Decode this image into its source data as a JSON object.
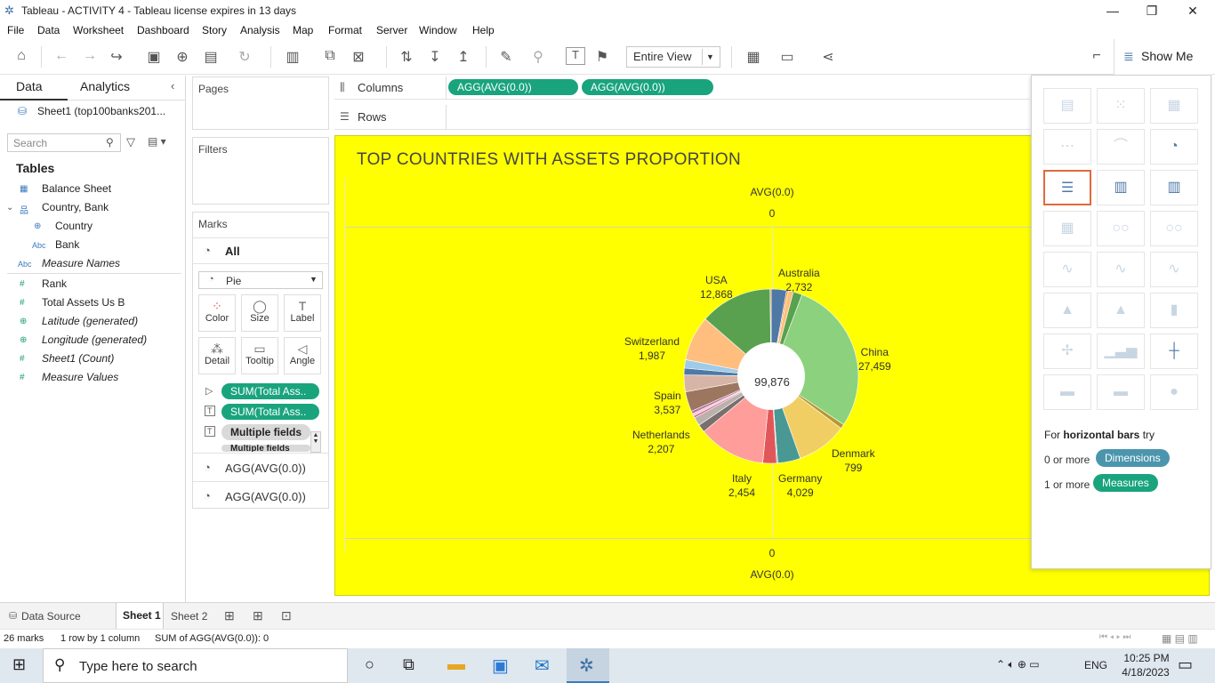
{
  "window": {
    "title": "Tableau - ACTIVITY 4 - Tableau license expires in 13 days"
  },
  "menu": [
    "File",
    "Data",
    "Worksheet",
    "Dashboard",
    "Story",
    "Analysis",
    "Map",
    "Format",
    "Server",
    "Window",
    "Help"
  ],
  "toolbar": {
    "fit_value": "Entire View",
    "show_me_label": "Show Me"
  },
  "datapane": {
    "tab_data": "Data",
    "tab_analytics": "Analytics",
    "datasource": "Sheet1 (top100banks201...",
    "search_placeholder": "Search",
    "tables_heading": "Tables",
    "fields": [
      {
        "name": "Balance Sheet",
        "icon": "table-icon"
      },
      {
        "name": "Country, Bank",
        "icon": "hierarchy-icon"
      },
      {
        "name": "Country",
        "icon": "globe-icon"
      },
      {
        "name": "Bank",
        "icon": "abc-icon"
      },
      {
        "name": "Measure Names",
        "icon": "abc-icon"
      },
      {
        "name": "Rank",
        "icon": "hash-icon"
      },
      {
        "name": "Total Assets Us B",
        "icon": "hash-icon"
      },
      {
        "name": "Latitude (generated)",
        "icon": "globe-icon"
      },
      {
        "name": "Longitude (generated)",
        "icon": "globe-icon"
      },
      {
        "name": "Sheet1 (Count)",
        "icon": "hash-icon"
      },
      {
        "name": "Measure Values",
        "icon": "hash-icon"
      }
    ],
    "abc_glyph": "Abc"
  },
  "shelves": {
    "pages": "Pages",
    "filters": "Filters",
    "columns_label": "Columns",
    "rows_label": "Rows",
    "column_pills": [
      "AGG(AVG(0.0))",
      "AGG(AVG(0.0))"
    ]
  },
  "marks": {
    "title": "Marks",
    "all": "All",
    "mark_type": "Pie",
    "buttons": [
      "Color",
      "Size",
      "Label",
      "Detail",
      "Tooltip",
      "Angle"
    ],
    "pills": [
      "SUM(Total Ass..",
      "SUM(Total Ass..",
      "Multiple fields",
      "Multiple fields"
    ],
    "sub_cards": [
      "AGG(AVG(0.0))",
      "AGG(AVG(0.0))"
    ]
  },
  "viz": {
    "title": "TOP COUNTRIES WITH ASSETS PROPORTION",
    "axis_top_label": "AVG(0.0)",
    "axis_top_tick": "0",
    "axis_bottom_tick": "0",
    "axis_bottom_label": "AVG(0.0)",
    "center_total": "99,876",
    "background": "#ffff00"
  },
  "chart_data": {
    "type": "pie",
    "title": "TOP COUNTRIES WITH ASSETS PROPORTION",
    "total": 99876,
    "labeled_slices": [
      {
        "label": "USA",
        "value": 12868
      },
      {
        "label": "Australia",
        "value": 2732
      },
      {
        "label": "China",
        "value": 27459
      },
      {
        "label": "Denmark",
        "value": 799
      },
      {
        "label": "Germany",
        "value": 4029
      },
      {
        "label": "Italy",
        "value": 2454
      },
      {
        "label": "Netherlands",
        "value": 2207
      },
      {
        "label": "Spain",
        "value": 3537
      },
      {
        "label": "Switzerland",
        "value": 1987
      }
    ],
    "label_values_text": [
      "12,868",
      "2,732",
      "27,459",
      "799",
      "4,029",
      "2,454",
      "2,207",
      "3,537",
      "1,987"
    ],
    "slice_colors": [
      "#4e79a7",
      "#f28e2b",
      "#ffbe7d",
      "#59a14f",
      "#8cd17d",
      "#b6992d",
      "#f1ce63",
      "#499894",
      "#86bcb6",
      "#e15759",
      "#ff9d9a",
      "#79706e",
      "#bab0ac",
      "#d37295",
      "#fabfd2",
      "#b07aa1",
      "#d4a6c8",
      "#9d7660",
      "#d7b5a6",
      "#4e79a7",
      "#a0cbe8",
      "#f28e2b",
      "#ffbe7d",
      "#59a14f",
      "#8cd17d",
      "#5a9e4c"
    ],
    "mark_count": 26
  },
  "showme": {
    "hint_prefix": "For ",
    "hint_bold": "horizontal bars",
    "hint_suffix": " try",
    "dims_prefix": "0 or more",
    "dims_label": "Dimensions",
    "meas_prefix": "1 or more",
    "meas_label": "Measures"
  },
  "sheettabs": {
    "datasource": "Data Source",
    "tabs": [
      "Sheet 1",
      "Sheet 2"
    ]
  },
  "status": {
    "marks": "26 marks",
    "rows": "1 row by 1 column",
    "sum": "SUM of AGG(AVG(0.0)): 0"
  },
  "taskbar": {
    "search_placeholder": "Type here to search",
    "time": "10:25 PM",
    "date": "4/18/2023",
    "lang": "ENG"
  }
}
